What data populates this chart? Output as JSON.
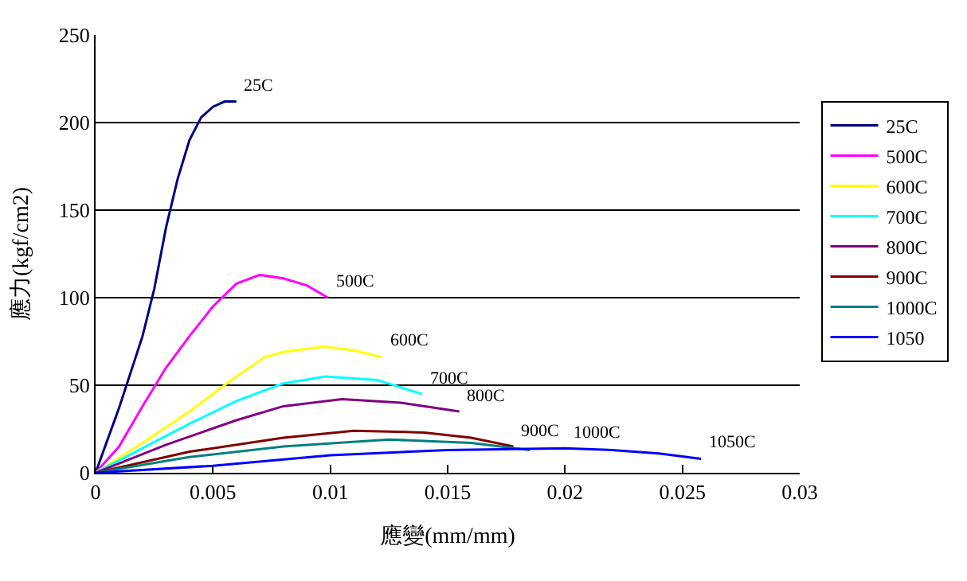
{
  "chart_data": {
    "type": "line",
    "xlabel": "應變(mm/mm)",
    "ylabel": "應力(kgf/cm2)",
    "xlim": [
      0,
      0.03
    ],
    "xticks": [
      0,
      0.005,
      0.01,
      0.015,
      0.02,
      0.025,
      0.03
    ],
    "ylim": [
      0,
      250
    ],
    "yticks": [
      0,
      50,
      100,
      150,
      200,
      250
    ],
    "grid": "y",
    "legend": "right",
    "marker": "none",
    "line_style": "solid",
    "series": [
      {
        "name": "25C",
        "color": "#000080",
        "x": [
          0,
          0.001,
          0.002,
          0.0025,
          0.003,
          0.0035,
          0.004,
          0.0045,
          0.005,
          0.0055,
          0.006
        ],
        "values": [
          0,
          37,
          78,
          105,
          140,
          168,
          190,
          203,
          209,
          212,
          212
        ]
      },
      {
        "name": "500C",
        "color": "#ff00ff",
        "x": [
          0,
          0.001,
          0.002,
          0.003,
          0.004,
          0.005,
          0.006,
          0.007,
          0.008,
          0.009,
          0.0099
        ],
        "values": [
          0,
          15,
          38,
          60,
          78,
          95,
          108,
          113,
          111,
          107,
          100
        ]
      },
      {
        "name": "600C",
        "color": "#ffff00",
        "x": [
          0,
          0.002,
          0.004,
          0.006,
          0.0072,
          0.008,
          0.0097,
          0.011,
          0.0122
        ],
        "values": [
          0,
          17,
          35,
          55,
          66,
          69,
          72,
          70,
          66
        ]
      },
      {
        "name": "700C",
        "color": "#00ffff",
        "x": [
          0,
          0.002,
          0.004,
          0.006,
          0.008,
          0.0098,
          0.012,
          0.0139
        ],
        "values": [
          0,
          14,
          28,
          41,
          51,
          55,
          53,
          45
        ]
      },
      {
        "name": "800C",
        "color": "#800080",
        "x": [
          0,
          0.003,
          0.006,
          0.008,
          0.0105,
          0.013,
          0.0155
        ],
        "values": [
          0,
          16,
          30,
          38,
          42,
          40,
          35
        ]
      },
      {
        "name": "900C",
        "color": "#800000",
        "x": [
          0,
          0.004,
          0.008,
          0.011,
          0.014,
          0.016,
          0.0178
        ],
        "values": [
          0,
          12,
          20,
          24,
          23,
          20,
          15
        ]
      },
      {
        "name": "1000C",
        "color": "#008080",
        "x": [
          0,
          0.004,
          0.008,
          0.0125,
          0.016,
          0.0185
        ],
        "values": [
          0,
          9,
          15,
          19,
          17,
          13
        ]
      },
      {
        "name": "1050",
        "color": "#0000ff",
        "x": [
          0,
          0.005,
          0.01,
          0.015,
          0.02,
          0.022,
          0.024,
          0.0258
        ],
        "values": [
          0,
          4,
          10,
          13,
          14,
          13,
          11,
          8
        ]
      }
    ],
    "annotations": [
      {
        "text": "25C",
        "x": 0.006,
        "y": 212
      },
      {
        "text": "500C",
        "x": 0.0099,
        "y": 100
      },
      {
        "text": "600C",
        "x": 0.0122,
        "y": 66
      },
      {
        "text": "700C",
        "x": 0.0139,
        "y": 45
      },
      {
        "text": "800C",
        "x": 0.0155,
        "y": 35
      },
      {
        "text": "900C",
        "x": 0.0178,
        "y": 15
      },
      {
        "text": "1000C",
        "x": 0.02,
        "y": 14
      },
      {
        "text": "1050C",
        "x": 0.0258,
        "y": 8
      }
    ]
  }
}
